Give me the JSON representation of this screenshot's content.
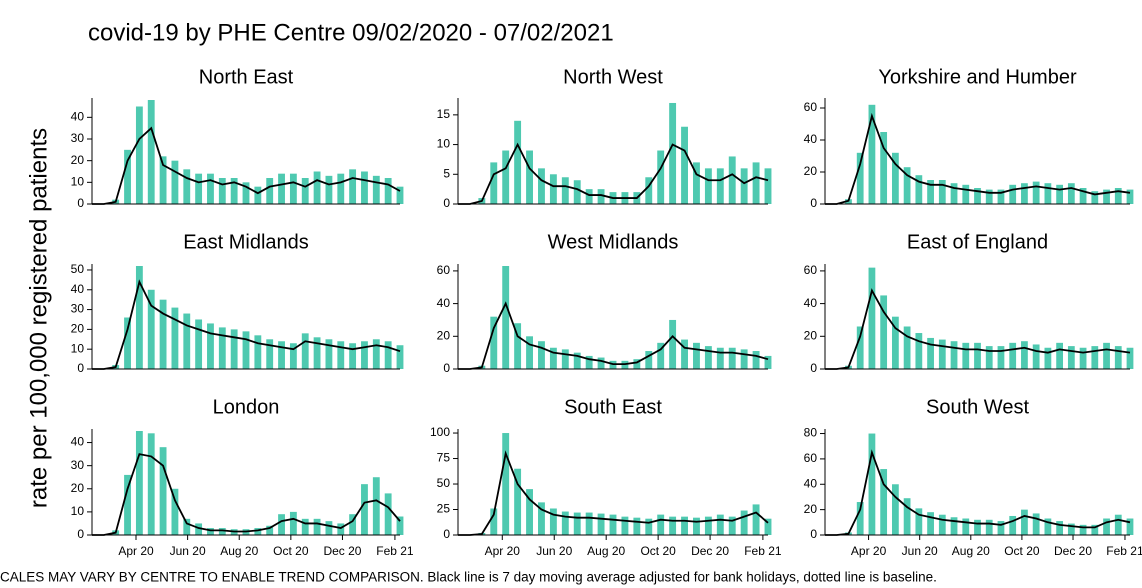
{
  "title": "covid-19 by PHE Centre 09/02/2020 - 07/02/2021",
  "ylabel": "rate per 100,000 registered patients",
  "footnote": "CALES MAY VARY BY CENTRE TO ENABLE TREND COMPARISON. Black line is 7 day moving average adjusted for bank holidays, dotted line is baseline.",
  "chart_data": [
    {
      "type": "bar",
      "title": "North East",
      "x": [
        "2020-02-09",
        "2020-02-23",
        "2020-03-08",
        "2020-03-22",
        "2020-04-05",
        "2020-04-19",
        "2020-05-03",
        "2020-05-17",
        "2020-05-31",
        "2020-06-14",
        "2020-06-28",
        "2020-07-12",
        "2020-07-26",
        "2020-08-09",
        "2020-08-23",
        "2020-09-06",
        "2020-09-20",
        "2020-10-04",
        "2020-10-18",
        "2020-11-01",
        "2020-11-15",
        "2020-11-29",
        "2020-12-13",
        "2020-12-27",
        "2021-01-10",
        "2021-01-24",
        "2021-02-07"
      ],
      "xlim": [
        "2020-02-09",
        "2021-02-07"
      ],
      "ylim": [
        0,
        48
      ],
      "yticks": [
        0,
        10,
        20,
        30,
        40
      ],
      "series": [
        {
          "type": "bar",
          "color": "#4ec9b0",
          "values": [
            0,
            0,
            2,
            25,
            45,
            48,
            22,
            20,
            16,
            14,
            14,
            12,
            12,
            10,
            8,
            12,
            14,
            14,
            12,
            15,
            13,
            14,
            16,
            15,
            13,
            12,
            8
          ]
        },
        {
          "type": "line",
          "color": "#000000",
          "values": [
            0,
            0,
            1,
            20,
            30,
            35,
            18,
            15,
            12,
            10,
            11,
            9,
            10,
            8,
            5,
            8,
            9,
            10,
            8,
            11,
            9,
            10,
            12,
            11,
            10,
            9,
            6
          ]
        }
      ]
    },
    {
      "type": "bar",
      "title": "North West",
      "x": [
        "2020-02-09",
        "2020-02-23",
        "2020-03-08",
        "2020-03-22",
        "2020-04-05",
        "2020-04-19",
        "2020-05-03",
        "2020-05-17",
        "2020-05-31",
        "2020-06-14",
        "2020-06-28",
        "2020-07-12",
        "2020-07-26",
        "2020-08-09",
        "2020-08-23",
        "2020-09-06",
        "2020-09-20",
        "2020-10-04",
        "2020-10-18",
        "2020-11-01",
        "2020-11-15",
        "2020-11-29",
        "2020-12-13",
        "2020-12-27",
        "2021-01-10",
        "2021-01-24",
        "2021-02-07"
      ],
      "xlim": [
        "2020-02-09",
        "2021-02-07"
      ],
      "ylim": [
        0,
        17.5
      ],
      "yticks": [
        0,
        5,
        10,
        15
      ],
      "series": [
        {
          "type": "bar",
          "color": "#4ec9b0",
          "values": [
            0,
            0,
            1,
            7,
            9,
            14,
            9,
            6,
            5,
            4.5,
            4,
            2.5,
            2.5,
            2,
            2,
            2,
            4.5,
            9,
            17,
            13,
            7,
            6,
            6,
            8,
            6,
            7,
            6
          ]
        },
        {
          "type": "line",
          "color": "#000000",
          "values": [
            0,
            0,
            0.5,
            5,
            6,
            10,
            6,
            4,
            3,
            3,
            2.5,
            1.5,
            1.5,
            1,
            1,
            1,
            3,
            6,
            10,
            9,
            5,
            4,
            4,
            5,
            3.5,
            4.5,
            4
          ]
        }
      ]
    },
    {
      "type": "bar",
      "title": "Yorkshire and Humber",
      "x": [
        "2020-02-09",
        "2020-02-23",
        "2020-03-08",
        "2020-03-22",
        "2020-04-05",
        "2020-04-19",
        "2020-05-03",
        "2020-05-17",
        "2020-05-31",
        "2020-06-14",
        "2020-06-28",
        "2020-07-12",
        "2020-07-26",
        "2020-08-09",
        "2020-08-23",
        "2020-09-06",
        "2020-09-20",
        "2020-10-04",
        "2020-10-18",
        "2020-11-01",
        "2020-11-15",
        "2020-11-29",
        "2020-12-13",
        "2020-12-27",
        "2021-01-10",
        "2021-01-24",
        "2021-02-07"
      ],
      "xlim": [
        "2020-02-09",
        "2021-02-07"
      ],
      "ylim": [
        0,
        65
      ],
      "yticks": [
        0,
        20,
        40,
        60
      ],
      "series": [
        {
          "type": "bar",
          "color": "#4ec9b0",
          "values": [
            0,
            0,
            3,
            32,
            62,
            45,
            32,
            23,
            18,
            15,
            15,
            13,
            12,
            10,
            9,
            9,
            12,
            13,
            14,
            13,
            12,
            13,
            10,
            8,
            9,
            10,
            9
          ]
        },
        {
          "type": "line",
          "color": "#000000",
          "values": [
            0,
            0,
            2,
            25,
            55,
            35,
            25,
            18,
            14,
            12,
            12,
            10,
            9,
            8,
            7,
            7,
            9,
            10,
            11,
            10,
            9,
            10,
            8,
            6,
            7,
            8,
            7
          ]
        }
      ]
    },
    {
      "type": "bar",
      "title": "East Midlands",
      "x": [
        "2020-02-09",
        "2020-02-23",
        "2020-03-08",
        "2020-03-22",
        "2020-04-05",
        "2020-04-19",
        "2020-05-03",
        "2020-05-17",
        "2020-05-31",
        "2020-06-14",
        "2020-06-28",
        "2020-07-12",
        "2020-07-26",
        "2020-08-09",
        "2020-08-23",
        "2020-09-06",
        "2020-09-20",
        "2020-10-04",
        "2020-10-18",
        "2020-11-01",
        "2020-11-15",
        "2020-11-29",
        "2020-12-13",
        "2020-12-27",
        "2021-01-10",
        "2021-01-24",
        "2021-02-07"
      ],
      "xlim": [
        "2020-02-09",
        "2021-02-07"
      ],
      "ylim": [
        0,
        52
      ],
      "yticks": [
        0,
        10,
        20,
        30,
        40,
        50
      ],
      "series": [
        {
          "type": "bar",
          "color": "#4ec9b0",
          "values": [
            0,
            0,
            2,
            26,
            52,
            40,
            35,
            31,
            28,
            25,
            23,
            21,
            20,
            19,
            17,
            15,
            14,
            13,
            18,
            16,
            15,
            14,
            13,
            14,
            15,
            14,
            12
          ]
        },
        {
          "type": "line",
          "color": "#000000",
          "values": [
            0,
            0,
            1,
            20,
            44,
            32,
            28,
            25,
            22,
            20,
            18,
            17,
            16,
            15,
            13,
            12,
            11,
            10,
            14,
            13,
            12,
            11,
            10,
            11,
            12,
            11,
            9
          ]
        }
      ]
    },
    {
      "type": "bar",
      "title": "West Midlands",
      "x": [
        "2020-02-09",
        "2020-02-23",
        "2020-03-08",
        "2020-03-22",
        "2020-04-05",
        "2020-04-19",
        "2020-05-03",
        "2020-05-17",
        "2020-05-31",
        "2020-06-14",
        "2020-06-28",
        "2020-07-12",
        "2020-07-26",
        "2020-08-09",
        "2020-08-23",
        "2020-09-06",
        "2020-09-20",
        "2020-10-04",
        "2020-10-18",
        "2020-11-01",
        "2020-11-15",
        "2020-11-29",
        "2020-12-13",
        "2020-12-27",
        "2021-01-10",
        "2021-01-24",
        "2021-02-07"
      ],
      "xlim": [
        "2020-02-09",
        "2021-02-07"
      ],
      "ylim": [
        0,
        63
      ],
      "yticks": [
        0,
        20,
        40,
        60
      ],
      "series": [
        {
          "type": "bar",
          "color": "#4ec9b0",
          "values": [
            0,
            0,
            2,
            32,
            63,
            28,
            20,
            17,
            13,
            12,
            10,
            8,
            7,
            5,
            5,
            6,
            11,
            16,
            30,
            18,
            16,
            14,
            13,
            13,
            12,
            11,
            8
          ]
        },
        {
          "type": "line",
          "color": "#000000",
          "values": [
            0,
            0,
            1,
            25,
            40,
            20,
            15,
            13,
            10,
            9,
            8,
            6,
            5,
            3,
            3,
            4,
            8,
            12,
            20,
            13,
            12,
            11,
            10,
            10,
            9,
            8,
            6
          ]
        }
      ]
    },
    {
      "type": "bar",
      "title": "East of England",
      "x": [
        "2020-02-09",
        "2020-02-23",
        "2020-03-08",
        "2020-03-22",
        "2020-04-05",
        "2020-04-19",
        "2020-05-03",
        "2020-05-17",
        "2020-05-31",
        "2020-06-14",
        "2020-06-28",
        "2020-07-12",
        "2020-07-26",
        "2020-08-09",
        "2020-08-23",
        "2020-09-06",
        "2020-09-20",
        "2020-10-04",
        "2020-10-18",
        "2020-11-01",
        "2020-11-15",
        "2020-11-29",
        "2020-12-13",
        "2020-12-27",
        "2021-01-10",
        "2021-01-24",
        "2021-02-07"
      ],
      "xlim": [
        "2020-02-09",
        "2021-02-07"
      ],
      "ylim": [
        0,
        63
      ],
      "yticks": [
        0,
        20,
        40,
        60
      ],
      "series": [
        {
          "type": "bar",
          "color": "#4ec9b0",
          "values": [
            0,
            0,
            2,
            26,
            62,
            45,
            32,
            26,
            22,
            19,
            18,
            17,
            16,
            16,
            14,
            14,
            16,
            17,
            15,
            13,
            16,
            14,
            13,
            14,
            16,
            14,
            13
          ]
        },
        {
          "type": "line",
          "color": "#000000",
          "values": [
            0,
            0,
            1,
            20,
            48,
            35,
            25,
            20,
            17,
            15,
            14,
            13,
            12,
            12,
            11,
            11,
            12,
            13,
            11,
            10,
            12,
            11,
            10,
            11,
            12,
            11,
            10
          ]
        }
      ]
    },
    {
      "type": "bar",
      "title": "London",
      "x": [
        "2020-02-09",
        "2020-02-23",
        "2020-03-08",
        "2020-03-22",
        "2020-04-05",
        "2020-04-19",
        "2020-05-03",
        "2020-05-17",
        "2020-05-31",
        "2020-06-14",
        "2020-06-28",
        "2020-07-12",
        "2020-07-26",
        "2020-08-09",
        "2020-08-23",
        "2020-09-06",
        "2020-09-20",
        "2020-10-04",
        "2020-10-18",
        "2020-11-01",
        "2020-11-15",
        "2020-11-29",
        "2020-12-13",
        "2020-12-27",
        "2021-01-10",
        "2021-01-24",
        "2021-02-07"
      ],
      "xlim": [
        "2020-02-09",
        "2021-02-07"
      ],
      "ylim": [
        0,
        45
      ],
      "yticks": [
        0,
        10,
        20,
        30,
        40
      ],
      "xticks": [
        {
          "value": "2020-04-01",
          "label": "Apr 20"
        },
        {
          "value": "2020-06-01",
          "label": "Jun 20"
        },
        {
          "value": "2020-08-01",
          "label": "Aug 20"
        },
        {
          "value": "2020-10-01",
          "label": "Oct 20"
        },
        {
          "value": "2020-12-01",
          "label": "Dec 20"
        },
        {
          "value": "2021-02-01",
          "label": "Feb 21"
        }
      ],
      "series": [
        {
          "type": "bar",
          "color": "#4ec9b0",
          "values": [
            0,
            0,
            2,
            26,
            45,
            44,
            38,
            20,
            7,
            5,
            3,
            3,
            2.5,
            2.5,
            3,
            4,
            9,
            10,
            7,
            7,
            6,
            5,
            9,
            22,
            25,
            18,
            8
          ]
        },
        {
          "type": "line",
          "color": "#000000",
          "values": [
            0,
            0,
            1,
            20,
            35,
            34,
            30,
            15,
            5,
            3,
            2,
            2,
            1.5,
            1.5,
            2,
            3,
            6,
            7,
            5,
            5,
            4,
            3,
            6,
            14,
            15,
            12,
            6
          ]
        }
      ]
    },
    {
      "type": "bar",
      "title": "South East",
      "x": [
        "2020-02-09",
        "2020-02-23",
        "2020-03-08",
        "2020-03-22",
        "2020-04-05",
        "2020-04-19",
        "2020-05-03",
        "2020-05-17",
        "2020-05-31",
        "2020-06-14",
        "2020-06-28",
        "2020-07-12",
        "2020-07-26",
        "2020-08-09",
        "2020-08-23",
        "2020-09-06",
        "2020-09-20",
        "2020-10-04",
        "2020-10-18",
        "2020-11-01",
        "2020-11-15",
        "2020-11-29",
        "2020-12-13",
        "2020-12-27",
        "2021-01-10",
        "2021-01-24",
        "2021-02-07"
      ],
      "xlim": [
        "2020-02-09",
        "2021-02-07"
      ],
      "ylim": [
        0,
        102
      ],
      "yticks": [
        0,
        25,
        50,
        75,
        100
      ],
      "xticks": [
        {
          "value": "2020-04-01",
          "label": "Apr 20"
        },
        {
          "value": "2020-06-01",
          "label": "Jun 20"
        },
        {
          "value": "2020-08-01",
          "label": "Aug 20"
        },
        {
          "value": "2020-10-01",
          "label": "Oct 20"
        },
        {
          "value": "2020-12-01",
          "label": "Dec 20"
        },
        {
          "value": "2021-02-01",
          "label": "Feb 21"
        }
      ],
      "series": [
        {
          "type": "bar",
          "color": "#4ec9b0",
          "values": [
            0,
            0,
            2,
            26,
            100,
            65,
            45,
            32,
            26,
            23,
            22,
            22,
            21,
            20,
            18,
            17,
            16,
            20,
            18,
            18,
            17,
            18,
            20,
            18,
            24,
            30,
            16
          ]
        },
        {
          "type": "line",
          "color": "#000000",
          "values": [
            0,
            0,
            1,
            20,
            80,
            50,
            35,
            25,
            20,
            18,
            17,
            17,
            16,
            15,
            14,
            13,
            12,
            15,
            14,
            14,
            13,
            14,
            15,
            14,
            18,
            22,
            12
          ]
        }
      ]
    },
    {
      "type": "bar",
      "title": "South West",
      "x": [
        "2020-02-09",
        "2020-02-23",
        "2020-03-08",
        "2020-03-22",
        "2020-04-05",
        "2020-04-19",
        "2020-05-03",
        "2020-05-17",
        "2020-05-31",
        "2020-06-14",
        "2020-06-28",
        "2020-07-12",
        "2020-07-26",
        "2020-08-09",
        "2020-08-23",
        "2020-09-06",
        "2020-09-20",
        "2020-10-04",
        "2020-10-18",
        "2020-11-01",
        "2020-11-15",
        "2020-11-29",
        "2020-12-13",
        "2020-12-27",
        "2021-01-10",
        "2021-01-24",
        "2021-02-07"
      ],
      "xlim": [
        "2020-02-09",
        "2021-02-07"
      ],
      "ylim": [
        0,
        82
      ],
      "yticks": [
        0,
        20,
        40,
        60,
        80
      ],
      "xticks": [
        {
          "value": "2020-04-01",
          "label": "Apr 20"
        },
        {
          "value": "2020-06-01",
          "label": "Jun 20"
        },
        {
          "value": "2020-08-01",
          "label": "Aug 20"
        },
        {
          "value": "2020-10-01",
          "label": "Oct 20"
        },
        {
          "value": "2020-12-01",
          "label": "Dec 20"
        },
        {
          "value": "2021-02-01",
          "label": "Feb 21"
        }
      ],
      "series": [
        {
          "type": "bar",
          "color": "#4ec9b0",
          "values": [
            0,
            0,
            2,
            26,
            80,
            52,
            40,
            29,
            21,
            18,
            16,
            14,
            13,
            12,
            12,
            11,
            15,
            20,
            17,
            13,
            11,
            9,
            8,
            8,
            13,
            16,
            13
          ]
        },
        {
          "type": "line",
          "color": "#000000",
          "values": [
            0,
            0,
            1,
            20,
            65,
            40,
            30,
            22,
            16,
            14,
            12,
            11,
            10,
            9,
            9,
            8,
            11,
            15,
            13,
            10,
            8,
            7,
            6,
            6,
            10,
            12,
            10
          ]
        }
      ]
    }
  ]
}
